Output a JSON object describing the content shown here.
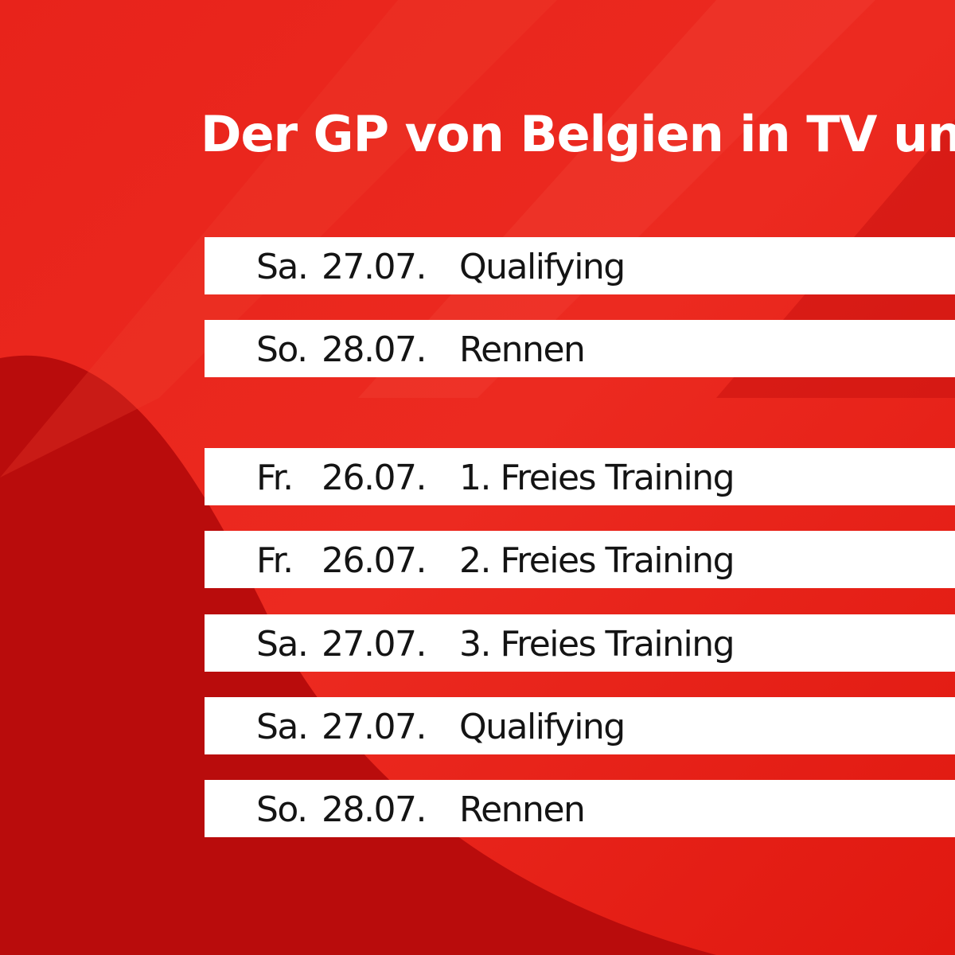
{
  "title": "Der GP von Belgien in TV und",
  "groups": [
    {
      "rows": [
        {
          "day": "Sa.",
          "date": "27.07.",
          "event": "Qualifying"
        },
        {
          "day": "So.",
          "date": "28.07.",
          "event": "Rennen"
        }
      ]
    },
    {
      "rows": [
        {
          "day": "Fr.",
          "date": "26.07.",
          "event": "1. Freies Training"
        },
        {
          "day": "Fr.",
          "date": "26.07.",
          "event": "2. Freies Training"
        },
        {
          "day": "Sa.",
          "date": "27.07.",
          "event": "3. Freies Training"
        },
        {
          "day": "Sa.",
          "date": "27.07.",
          "event": "Qualifying"
        },
        {
          "day": "So.",
          "date": "28.07.",
          "event": "Rennen"
        }
      ]
    }
  ]
}
